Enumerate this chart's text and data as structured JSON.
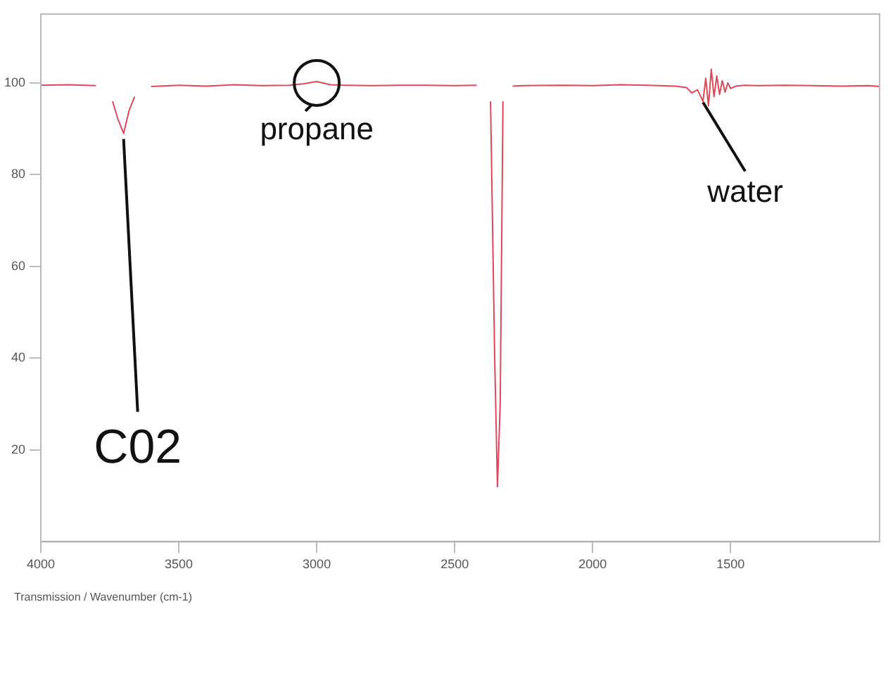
{
  "chart_data": {
    "type": "line",
    "xlabel": "Transmission / Wavenumber (cm-1)",
    "x": [
      4000,
      3900,
      3800,
      3760,
      3740,
      3720,
      3700,
      3680,
      3660,
      3640,
      3600,
      3500,
      3400,
      3300,
      3200,
      3100,
      3050,
      3000,
      2950,
      2900,
      2800,
      2700,
      2600,
      2500,
      2420,
      2400,
      2370,
      2355,
      2345,
      2335,
      2325,
      2310,
      2290,
      2250,
      2100,
      2000,
      1900,
      1800,
      1700,
      1660,
      1640,
      1620,
      1600,
      1590,
      1580,
      1570,
      1560,
      1550,
      1540,
      1530,
      1520,
      1510,
      1500,
      1480,
      1450,
      1400,
      1300,
      1200,
      1100,
      1000,
      960
    ],
    "series": [
      {
        "color": "#e04858",
        "values": [
          99.5,
          99.6,
          99.4,
          null,
          96,
          92,
          89,
          94,
          97,
          null,
          99.2,
          99.5,
          99.3,
          99.6,
          99.4,
          99.5,
          99.8,
          100.3,
          99.6,
          99.5,
          99.4,
          99.5,
          99.5,
          99.4,
          99.5,
          null,
          96,
          40,
          12,
          30,
          96,
          null,
          99.3,
          99.4,
          99.5,
          99.4,
          99.6,
          99.5,
          99.3,
          99,
          97.8,
          98.5,
          96,
          101,
          95,
          103,
          97,
          101.5,
          97.5,
          100.5,
          98,
          100,
          98.8,
          99.3,
          99.5,
          99.4,
          99.5,
          99.4,
          99.3,
          99.4,
          99.2
        ]
      }
    ],
    "xlim": [
      4000,
      960
    ],
    "xticks": [
      4000,
      3500,
      3000,
      2500,
      2000,
      1500
    ],
    "ylim": [
      0,
      115
    ],
    "yticks": [
      20,
      40,
      60,
      80,
      100
    ],
    "grid": false,
    "legend": false,
    "marker": "none",
    "line_style": "solid",
    "annotations": [
      {
        "text": "propane",
        "x": 3000,
        "y": 100
      },
      {
        "text": "water",
        "x": 1600,
        "y": 97
      },
      {
        "text": "C02",
        "x": 3700,
        "y": 89
      }
    ]
  }
}
